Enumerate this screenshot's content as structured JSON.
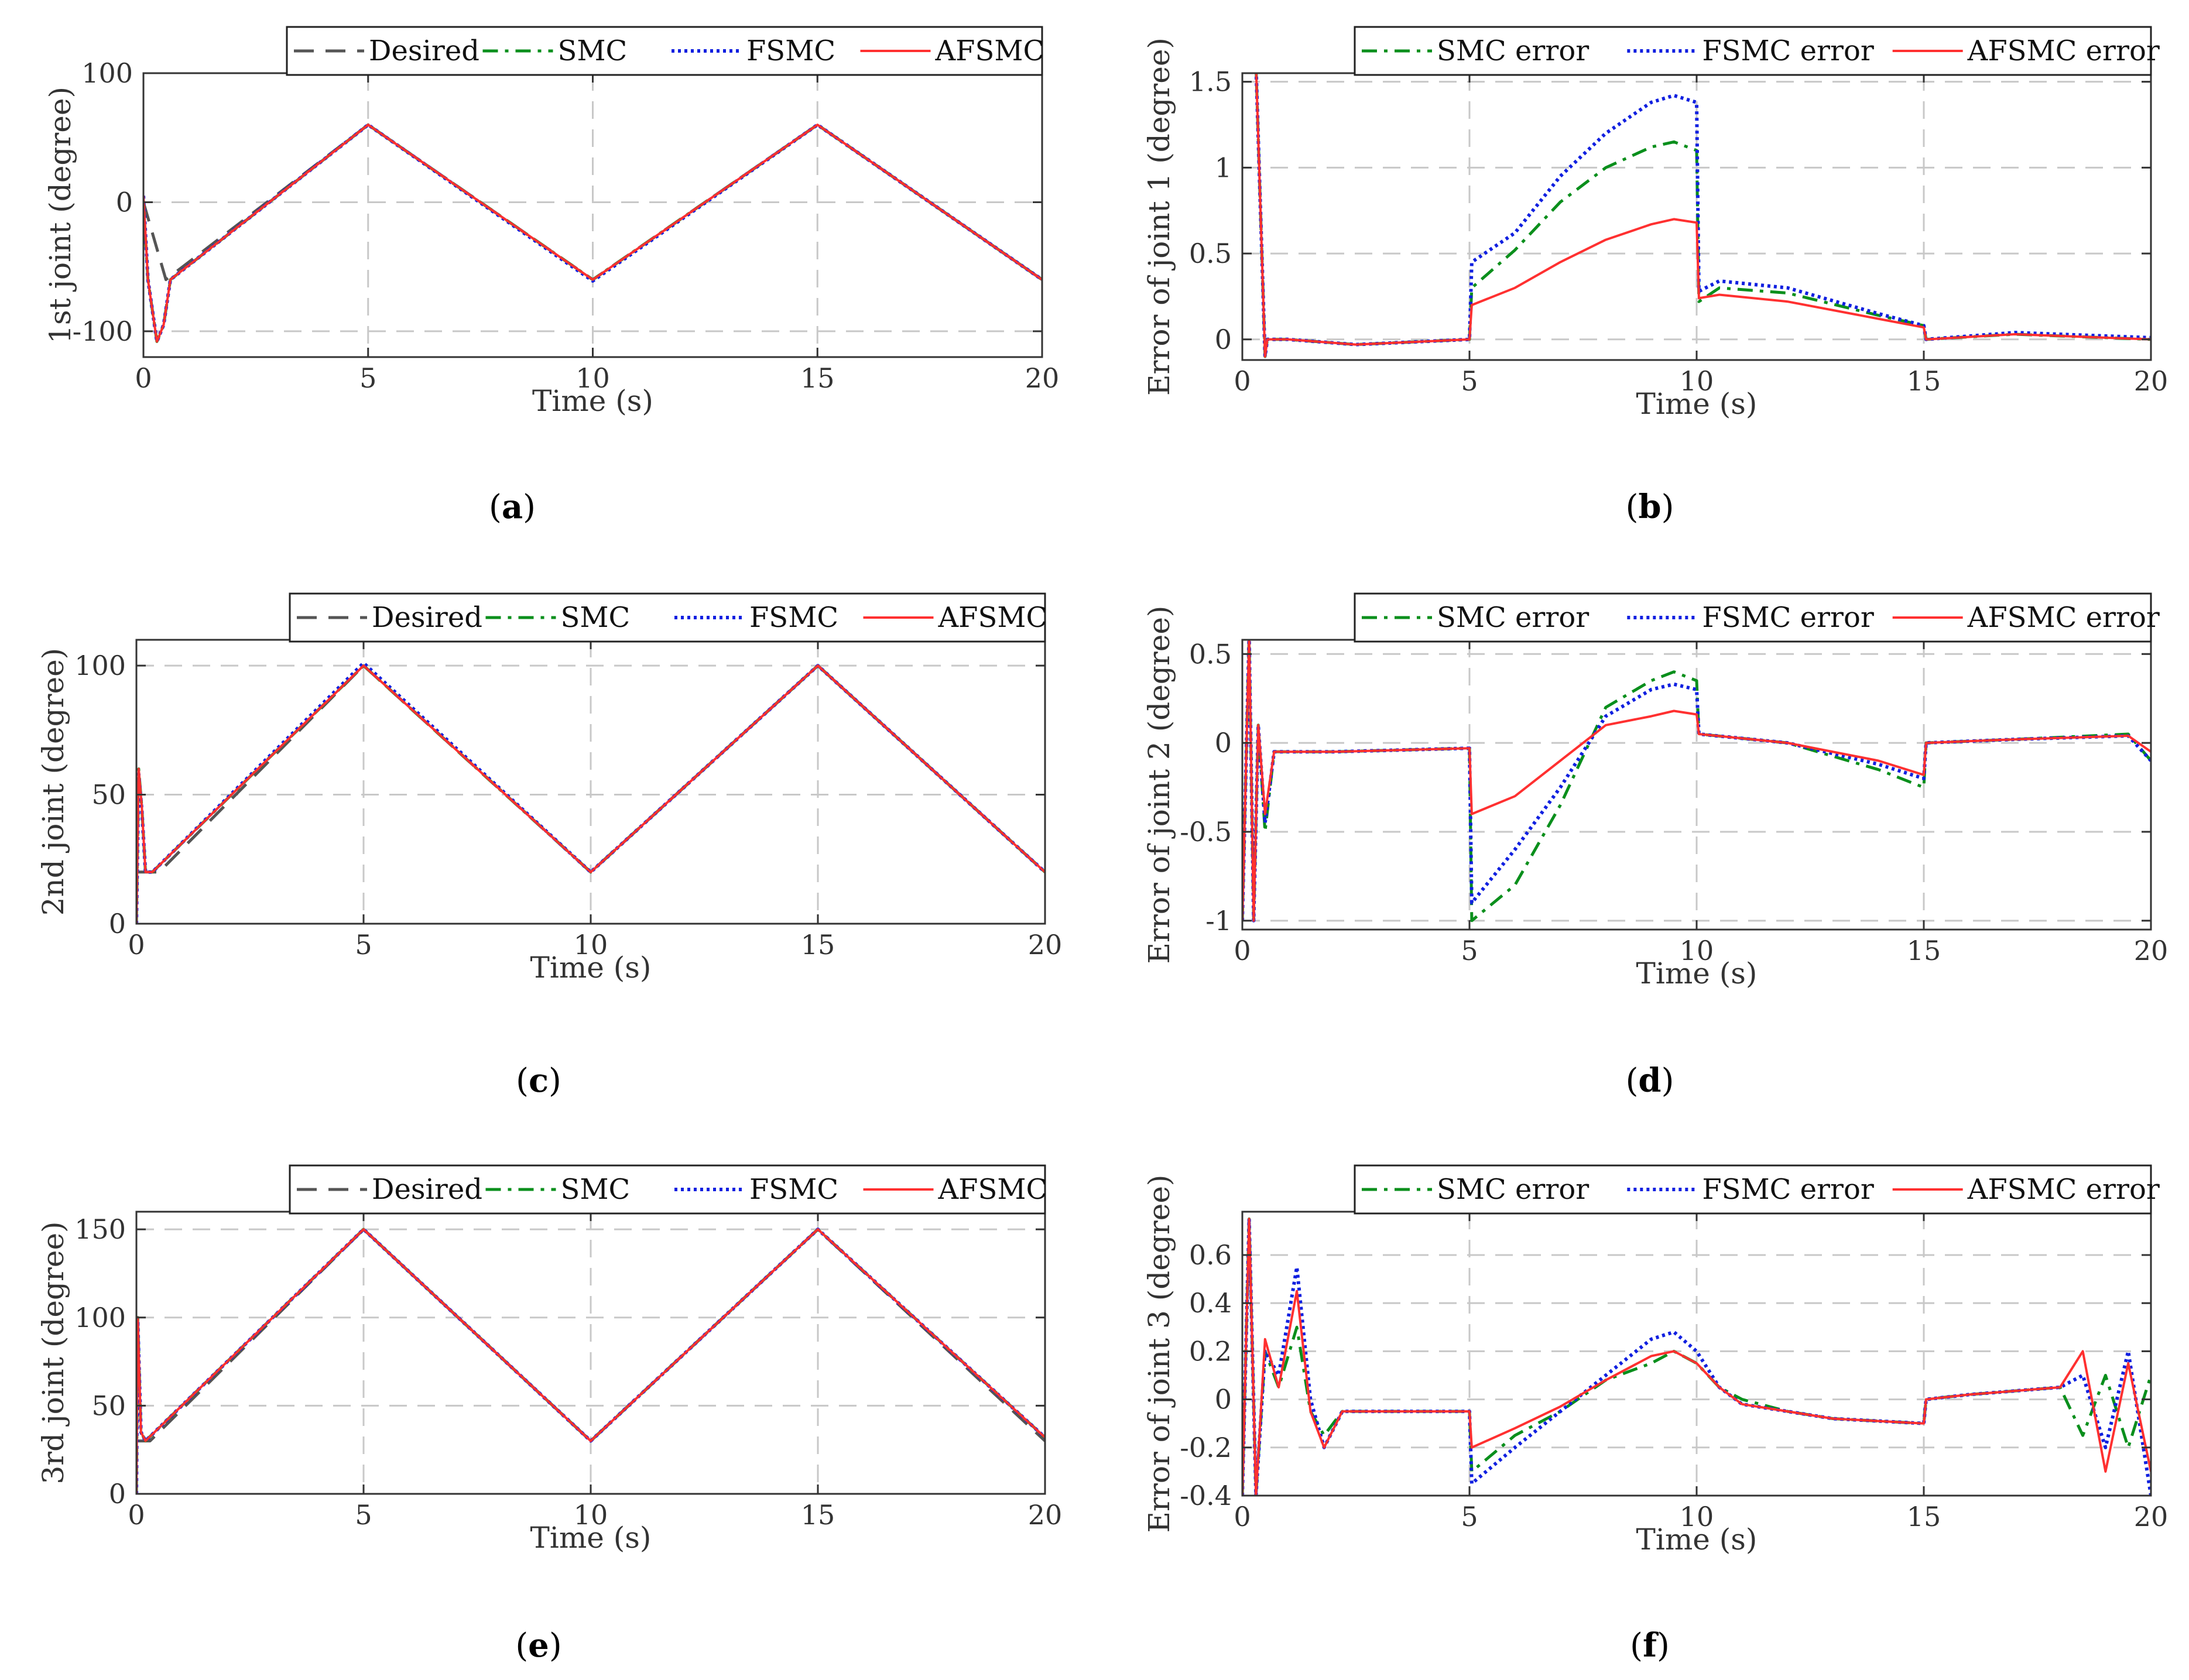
{
  "colors": {
    "desired": "#555555",
    "smc": "#0a8f1c",
    "fsmc": "#1020e0",
    "afsmc": "#ff3030",
    "grid": "#c8c8c8",
    "axis": "#333333"
  },
  "chart_data": [
    {
      "id": "a",
      "type": "line",
      "caption_letter": "a",
      "xlabel": "Time (s)",
      "ylabel": "1st joint (degree)",
      "xlim": [
        0,
        20
      ],
      "ylim": [
        -120,
        100
      ],
      "xticks": [
        0,
        5,
        10,
        15,
        20
      ],
      "yticks": [
        -100,
        0,
        100
      ],
      "yticklabels": [
        "-100",
        "0",
        "100"
      ],
      "grid": true,
      "legend_position": "top-right-outside",
      "series": [
        {
          "name": "Desired",
          "style": "dash",
          "color": "#555555",
          "x": [
            0,
            0.5,
            5,
            10,
            15,
            20
          ],
          "y": [
            0,
            -60,
            60,
            -60,
            60,
            -60
          ]
        },
        {
          "name": "SMC",
          "style": "dashdot",
          "color": "#0a8f1c",
          "x": [
            0,
            0.1,
            0.3,
            0.45,
            0.6,
            5,
            10,
            15,
            20
          ],
          "y": [
            0,
            -60,
            -108,
            -95,
            -60,
            60,
            -60,
            60,
            -60
          ]
        },
        {
          "name": "FSMC",
          "style": "dot",
          "color": "#1020e0",
          "x": [
            0,
            0.1,
            0.3,
            0.45,
            0.6,
            5,
            10,
            15,
            20
          ],
          "y": [
            5,
            -60,
            -108,
            -95,
            -60,
            60,
            -61,
            60,
            -60
          ]
        },
        {
          "name": "AFSMC",
          "style": "solid",
          "color": "#ff3030",
          "x": [
            0,
            0.1,
            0.3,
            0.45,
            0.6,
            5,
            10,
            15,
            20
          ],
          "y": [
            5,
            -60,
            -108,
            -95,
            -60,
            60,
            -60,
            60,
            -60
          ]
        }
      ]
    },
    {
      "id": "b",
      "type": "line",
      "caption_letter": "b",
      "xlabel": "Time (s)",
      "ylabel": "Error of joint 1 (degree)",
      "xlim": [
        0,
        20
      ],
      "ylim": [
        -0.12,
        1.55
      ],
      "xticks": [
        0,
        5,
        10,
        15,
        20
      ],
      "yticks": [
        0,
        0.5,
        1,
        1.5
      ],
      "yticklabels": [
        "0",
        "0.5",
        "1",
        "1.5"
      ],
      "grid": true,
      "legend_position": "top-right-outside",
      "series": [
        {
          "name": "SMC error",
          "style": "dashdot",
          "color": "#0a8f1c",
          "x": [
            0,
            0.12,
            0.3,
            0.5,
            0.55,
            1,
            2.5,
            5,
            5.05,
            6,
            7,
            8,
            9,
            9.5,
            10,
            10.05,
            10.5,
            12,
            14,
            15,
            15.05,
            17,
            20
          ],
          "y": [
            1.6,
            1.6,
            1.6,
            -0.1,
            0,
            0,
            -0.03,
            0,
            0.3,
            0.52,
            0.8,
            1.0,
            1.12,
            1.15,
            1.1,
            0.22,
            0.3,
            0.27,
            0.14,
            0.08,
            0,
            0.03,
            0
          ]
        },
        {
          "name": "FSMC error",
          "style": "dot",
          "color": "#1020e0",
          "x": [
            0,
            0.12,
            0.3,
            0.5,
            0.55,
            1,
            2.5,
            5,
            5.05,
            6,
            7,
            8,
            9,
            9.5,
            10,
            10.05,
            10.5,
            12,
            14,
            15,
            15.05,
            17,
            20
          ],
          "y": [
            1.6,
            1.6,
            1.6,
            -0.1,
            0,
            0,
            -0.03,
            0,
            0.45,
            0.62,
            0.95,
            1.2,
            1.38,
            1.42,
            1.38,
            0.28,
            0.34,
            0.3,
            0.15,
            0.08,
            0,
            0.04,
            0.01
          ]
        },
        {
          "name": "AFSMC error",
          "style": "solid",
          "color": "#ff3030",
          "x": [
            0,
            0.12,
            0.3,
            0.5,
            0.55,
            1,
            2.5,
            5,
            5.05,
            6,
            7,
            8,
            9,
            9.5,
            10,
            10.05,
            10.5,
            12,
            14,
            15,
            15.05,
            17,
            20
          ],
          "y": [
            1.6,
            1.6,
            1.6,
            -0.1,
            0,
            0,
            -0.03,
            0,
            0.2,
            0.3,
            0.45,
            0.58,
            0.67,
            0.7,
            0.68,
            0.24,
            0.26,
            0.22,
            0.12,
            0.07,
            0,
            0.03,
            0
          ]
        }
      ]
    },
    {
      "id": "c",
      "type": "line",
      "caption_letter": "c",
      "xlabel": "Time (s)",
      "ylabel": "2nd joint (degree)",
      "xlim": [
        0,
        20
      ],
      "ylim": [
        0,
        110
      ],
      "xticks": [
        0,
        5,
        10,
        15,
        20
      ],
      "yticks": [
        0,
        50,
        100
      ],
      "yticklabels": [
        "0",
        "50",
        "100"
      ],
      "grid": true,
      "legend_position": "top-right-outside",
      "series": [
        {
          "name": "Desired",
          "style": "dash",
          "color": "#555555",
          "x": [
            0,
            0.5,
            5,
            10,
            15,
            20
          ],
          "y": [
            20,
            20,
            100,
            20,
            100,
            20
          ]
        },
        {
          "name": "SMC",
          "style": "dashdot",
          "color": "#0a8f1c",
          "x": [
            0,
            0.05,
            0.12,
            0.2,
            0.35,
            5,
            10,
            15,
            20
          ],
          "y": [
            0,
            60,
            45,
            20,
            20,
            100,
            20,
            100,
            20
          ]
        },
        {
          "name": "FSMC",
          "style": "dot",
          "color": "#1020e0",
          "x": [
            0,
            0.05,
            0.12,
            0.2,
            0.35,
            5,
            10,
            15,
            20
          ],
          "y": [
            0,
            58,
            44,
            20,
            20,
            101,
            20,
            100,
            20
          ]
        },
        {
          "name": "AFSMC",
          "style": "solid",
          "color": "#ff3030",
          "x": [
            0,
            0.05,
            0.12,
            0.2,
            0.35,
            5,
            10,
            15,
            20
          ],
          "y": [
            0,
            60,
            45,
            20,
            20,
            100,
            20,
            100,
            20
          ]
        }
      ]
    },
    {
      "id": "d",
      "type": "line",
      "caption_letter": "d",
      "xlabel": "Time (s)",
      "ylabel": "Error of joint 2 (degree)",
      "xlim": [
        0,
        20
      ],
      "ylim": [
        -1.05,
        0.58
      ],
      "xticks": [
        0,
        5,
        10,
        15,
        20
      ],
      "yticks": [
        -1,
        -0.5,
        0,
        0.5
      ],
      "yticklabels": [
        "-1",
        "-0.5",
        "0",
        "0.5"
      ],
      "grid": true,
      "legend_position": "top-right-outside",
      "series": [
        {
          "name": "SMC error",
          "style": "dashdot",
          "color": "#0a8f1c",
          "x": [
            0,
            0.15,
            0.25,
            0.35,
            0.5,
            0.7,
            2,
            5,
            5.05,
            6,
            7,
            8,
            9,
            9.5,
            10,
            10.05,
            12,
            14,
            15,
            15.05,
            17,
            19.5,
            20
          ],
          "y": [
            -1.0,
            0.6,
            -1.0,
            0.1,
            -0.5,
            -0.05,
            -0.05,
            -0.03,
            -1.0,
            -0.8,
            -0.35,
            0.2,
            0.35,
            0.4,
            0.35,
            0.05,
            0.0,
            -0.15,
            -0.25,
            0.0,
            0.02,
            0.05,
            -0.1
          ]
        },
        {
          "name": "FSMC error",
          "style": "dot",
          "color": "#1020e0",
          "x": [
            0,
            0.15,
            0.25,
            0.35,
            0.5,
            0.7,
            2,
            5,
            5.05,
            6,
            7,
            8,
            9,
            9.5,
            10,
            10.05,
            12,
            14,
            15,
            15.05,
            17,
            19.5,
            20
          ],
          "y": [
            -1.0,
            0.6,
            -1.0,
            0.1,
            -0.45,
            -0.05,
            -0.05,
            -0.03,
            -0.9,
            -0.6,
            -0.25,
            0.15,
            0.3,
            0.33,
            0.3,
            0.05,
            0.0,
            -0.12,
            -0.2,
            0.0,
            0.02,
            0.04,
            -0.1
          ]
        },
        {
          "name": "AFSMC error",
          "style": "solid",
          "color": "#ff3030",
          "x": [
            0,
            0.15,
            0.25,
            0.35,
            0.5,
            0.7,
            2,
            5,
            5.05,
            6,
            7,
            8,
            9,
            9.5,
            10,
            10.05,
            12,
            14,
            15,
            15.05,
            17,
            19.5,
            20
          ],
          "y": [
            -1.0,
            0.6,
            -1.0,
            0.1,
            -0.4,
            -0.05,
            -0.05,
            -0.03,
            -0.4,
            -0.3,
            -0.1,
            0.1,
            0.15,
            0.18,
            0.16,
            0.05,
            0.0,
            -0.1,
            -0.18,
            0.0,
            0.02,
            0.04,
            -0.05
          ]
        }
      ]
    },
    {
      "id": "e",
      "type": "line",
      "caption_letter": "e",
      "xlabel": "Time (s)",
      "ylabel": "3rd joint (degree)",
      "xlim": [
        0,
        20
      ],
      "ylim": [
        0,
        160
      ],
      "xticks": [
        0,
        5,
        10,
        15,
        20
      ],
      "yticks": [
        0,
        50,
        100,
        150
      ],
      "yticklabels": [
        "0",
        "50",
        "100",
        "150"
      ],
      "grid": true,
      "legend_position": "top-right-outside",
      "series": [
        {
          "name": "Desired",
          "style": "dash",
          "color": "#555555",
          "x": [
            0,
            0.3,
            5,
            10,
            15,
            20
          ],
          "y": [
            30,
            30,
            150,
            30,
            150,
            30
          ]
        },
        {
          "name": "SMC",
          "style": "dashdot",
          "color": "#0a8f1c",
          "x": [
            0,
            0.03,
            0.1,
            0.2,
            5,
            10,
            15,
            20
          ],
          "y": [
            0,
            100,
            35,
            30,
            150,
            30,
            150,
            32
          ]
        },
        {
          "name": "FSMC",
          "style": "dot",
          "color": "#1020e0",
          "x": [
            0,
            0.03,
            0.1,
            0.2,
            5,
            10,
            15,
            20
          ],
          "y": [
            0,
            98,
            35,
            30,
            150,
            30,
            150,
            32
          ]
        },
        {
          "name": "AFSMC",
          "style": "solid",
          "color": "#ff3030",
          "x": [
            0,
            0.03,
            0.1,
            0.2,
            5,
            10,
            15,
            20
          ],
          "y": [
            0,
            100,
            35,
            30,
            150,
            30,
            150,
            32
          ]
        }
      ]
    },
    {
      "id": "f",
      "type": "line",
      "caption_letter": "f",
      "xlabel": "Time (s)",
      "ylabel": "Error of joint 3 (degree)",
      "xlim": [
        0,
        20
      ],
      "ylim": [
        -0.4,
        0.78
      ],
      "xticks": [
        0,
        5,
        10,
        15,
        20
      ],
      "yticks": [
        -0.4,
        -0.2,
        0,
        0.2,
        0.4,
        0.6
      ],
      "yticklabels": [
        "-0.4",
        "-0.2",
        "0",
        "0.2",
        "0.4",
        "0.6"
      ],
      "grid": true,
      "legend_position": "top-right-outside",
      "series": [
        {
          "name": "SMC error",
          "style": "dashdot",
          "color": "#0a8f1c",
          "x": [
            0,
            0.15,
            0.3,
            0.5,
            0.8,
            1.2,
            1.5,
            1.8,
            2.2,
            3,
            5,
            5.05,
            6,
            7,
            8,
            9,
            9.5,
            10,
            10.5,
            11,
            12,
            13,
            15,
            15.05,
            16,
            18,
            18.5,
            19,
            19.5,
            20
          ],
          "y": [
            -0.4,
            0.75,
            -0.4,
            0.2,
            0.05,
            0.3,
            -0.05,
            -0.15,
            -0.05,
            -0.05,
            -0.05,
            -0.3,
            -0.15,
            -0.05,
            0.08,
            0.15,
            0.2,
            0.15,
            0.05,
            0.0,
            -0.05,
            -0.08,
            -0.1,
            0.0,
            0.02,
            0.05,
            -0.15,
            0.1,
            -0.2,
            0.1
          ]
        },
        {
          "name": "FSMC error",
          "style": "dot",
          "color": "#1020e0",
          "x": [
            0,
            0.15,
            0.3,
            0.5,
            0.8,
            1.2,
            1.5,
            1.8,
            2.2,
            3,
            5,
            5.05,
            6,
            7,
            8,
            9,
            9.5,
            10,
            10.5,
            11,
            12,
            13,
            15,
            15.05,
            16,
            18,
            18.5,
            19,
            19.5,
            20
          ],
          "y": [
            -0.4,
            0.75,
            -0.4,
            0.2,
            0.1,
            0.55,
            0.0,
            -0.2,
            -0.05,
            -0.05,
            -0.05,
            -0.35,
            -0.2,
            -0.05,
            0.1,
            0.25,
            0.28,
            0.2,
            0.05,
            -0.02,
            -0.05,
            -0.08,
            -0.1,
            0.0,
            0.02,
            0.05,
            0.1,
            -0.2,
            0.2,
            -0.4
          ]
        },
        {
          "name": "AFSMC error",
          "style": "solid",
          "color": "#ff3030",
          "x": [
            0,
            0.15,
            0.3,
            0.5,
            0.8,
            1.2,
            1.5,
            1.8,
            2.2,
            3,
            5,
            5.05,
            6,
            7,
            8,
            9,
            9.5,
            10,
            10.5,
            11,
            12,
            13,
            15,
            15.05,
            16,
            18,
            18.5,
            19,
            19.5,
            20
          ],
          "y": [
            -0.4,
            0.75,
            -0.4,
            0.25,
            0.05,
            0.45,
            -0.05,
            -0.2,
            -0.05,
            -0.05,
            -0.05,
            -0.2,
            -0.12,
            -0.03,
            0.08,
            0.18,
            0.2,
            0.15,
            0.05,
            -0.02,
            -0.05,
            -0.08,
            -0.1,
            0.0,
            0.02,
            0.05,
            0.2,
            -0.3,
            0.15,
            -0.3
          ]
        }
      ]
    }
  ]
}
